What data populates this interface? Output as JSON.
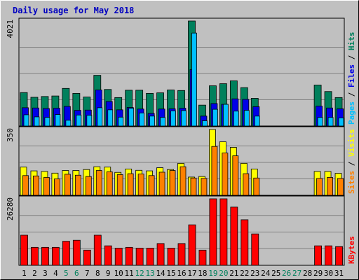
{
  "title": "Daily usage for May 2018",
  "colors": {
    "background": "#ffffff",
    "frame": "#c0c0c0",
    "plot_bg": "#c0c0c0",
    "grid": "#808080",
    "title": "#0000c0",
    "hits": "#00805c",
    "files": "#0000e8",
    "pages": "#00c0ff",
    "visits": "#ffff00",
    "sites": "#ff8000",
    "kbytes": "#ff0000",
    "weekday_label": "#000000",
    "weekend_label": "#00805c"
  },
  "legends": {
    "hits_panel": [
      {
        "text": "Pages",
        "color": "#00c0ff"
      },
      {
        "text": " / ",
        "color": "#000000"
      },
      {
        "text": "Files",
        "color": "#0000e8"
      },
      {
        "text": " / ",
        "color": "#000000"
      },
      {
        "text": "Hits",
        "color": "#00805c"
      }
    ],
    "visits_panel": [
      {
        "text": "Sites",
        "color": "#ff8000"
      },
      {
        "text": " / ",
        "color": "#000000"
      },
      {
        "text": "Visits",
        "color": "#ffff00"
      }
    ],
    "kbytes_panel": [
      {
        "text": "KBytes",
        "color": "#ff0000"
      }
    ]
  },
  "chart_data": [
    {
      "type": "bar",
      "panel": "hits",
      "ymax_label": "4021",
      "ylim": [
        0,
        4021
      ],
      "grid": true,
      "categories": [
        "1",
        "2",
        "3",
        "4",
        "5",
        "6",
        "7",
        "8",
        "9",
        "10",
        "11",
        "12",
        "13",
        "14",
        "15",
        "16",
        "17",
        "18",
        "19",
        "20",
        "21",
        "22",
        "23",
        "24",
        "25",
        "26",
        "27",
        "28",
        "29",
        "30",
        "31"
      ],
      "series": [
        {
          "name": "Hits",
          "values": [
            1280,
            1100,
            1130,
            1150,
            1440,
            1250,
            1110,
            1940,
            1400,
            1090,
            1370,
            1370,
            1250,
            1270,
            1380,
            1360,
            4021,
            800,
            1540,
            1620,
            1730,
            1470,
            1060,
            0,
            0,
            0,
            0,
            0,
            1570,
            1320,
            1090
          ]
        },
        {
          "name": "Files",
          "values": [
            700,
            690,
            670,
            680,
            750,
            600,
            610,
            1380,
            940,
            620,
            710,
            650,
            480,
            650,
            660,
            680,
            2160,
            380,
            860,
            830,
            1040,
            1020,
            740,
            0,
            0,
            0,
            0,
            0,
            760,
            690,
            660
          ]
        },
        {
          "name": "Pages",
          "values": [
            430,
            350,
            330,
            440,
            220,
            420,
            410,
            700,
            620,
            340,
            680,
            500,
            380,
            330,
            580,
            590,
            3560,
            200,
            640,
            830,
            570,
            600,
            380,
            0,
            0,
            0,
            0,
            0,
            330,
            330,
            310
          ]
        }
      ]
    },
    {
      "type": "bar",
      "panel": "visits",
      "ymax_label": "350",
      "ylim": [
        0,
        350
      ],
      "grid": true,
      "categories": [
        "1",
        "2",
        "3",
        "4",
        "5",
        "6",
        "7",
        "8",
        "9",
        "10",
        "11",
        "12",
        "13",
        "14",
        "15",
        "16",
        "17",
        "18",
        "19",
        "20",
        "21",
        "22",
        "23",
        "24",
        "25",
        "26",
        "27",
        "28",
        "29",
        "30",
        "31"
      ],
      "series": [
        {
          "name": "Visits",
          "values": [
            150,
            130,
            127,
            118,
            132,
            132,
            137,
            152,
            150,
            122,
            140,
            133,
            130,
            147,
            137,
            170,
            97,
            100,
            350,
            285,
            255,
            170,
            140,
            0,
            0,
            0,
            0,
            0,
            127,
            127,
            117
          ]
        },
        {
          "name": "Sites",
          "values": [
            105,
            103,
            95,
            87,
            112,
            107,
            100,
            132,
            125,
            110,
            115,
            113,
            105,
            123,
            132,
            152,
            92,
            90,
            260,
            225,
            210,
            115,
            92,
            0,
            0,
            0,
            0,
            0,
            90,
            95,
            90
          ]
        }
      ]
    },
    {
      "type": "bar",
      "panel": "kbytes",
      "ymax_label": "26280",
      "ylim": [
        0,
        26280
      ],
      "grid": true,
      "categories": [
        "1",
        "2",
        "3",
        "4",
        "5",
        "6",
        "7",
        "8",
        "9",
        "10",
        "11",
        "12",
        "13",
        "14",
        "15",
        "16",
        "17",
        "18",
        "19",
        "20",
        "21",
        "22",
        "23",
        "24",
        "25",
        "26",
        "27",
        "28",
        "29",
        "30",
        "31"
      ],
      "series": [
        {
          "name": "KBytes",
          "values": [
            11900,
            7100,
            7100,
            7100,
            9500,
            9900,
            6000,
            11900,
            7700,
            6800,
            7100,
            6800,
            6800,
            8600,
            6800,
            8600,
            16000,
            6000,
            26280,
            26280,
            23000,
            18000,
            12400,
            0,
            0,
            0,
            0,
            0,
            7700,
            7700,
            7400
          ]
        }
      ]
    }
  ],
  "x_labels": [
    {
      "text": "1",
      "weekend": false
    },
    {
      "text": "2",
      "weekend": false
    },
    {
      "text": "3",
      "weekend": false
    },
    {
      "text": "4",
      "weekend": false
    },
    {
      "text": "5",
      "weekend": true
    },
    {
      "text": "6",
      "weekend": true
    },
    {
      "text": "7",
      "weekend": false
    },
    {
      "text": "8",
      "weekend": false
    },
    {
      "text": "9",
      "weekend": false
    },
    {
      "text": "10",
      "weekend": false
    },
    {
      "text": "11",
      "weekend": false
    },
    {
      "text": "12",
      "weekend": true
    },
    {
      "text": "13",
      "weekend": true
    },
    {
      "text": "14",
      "weekend": false
    },
    {
      "text": "15",
      "weekend": false
    },
    {
      "text": "16",
      "weekend": false
    },
    {
      "text": "17",
      "weekend": false
    },
    {
      "text": "18",
      "weekend": false
    },
    {
      "text": "19",
      "weekend": true
    },
    {
      "text": "20",
      "weekend": true
    },
    {
      "text": "21",
      "weekend": false
    },
    {
      "text": "22",
      "weekend": false
    },
    {
      "text": "23",
      "weekend": false
    },
    {
      "text": "24",
      "weekend": false
    },
    {
      "text": "25",
      "weekend": false
    },
    {
      "text": "26",
      "weekend": true
    },
    {
      "text": "27",
      "weekend": true
    },
    {
      "text": "28",
      "weekend": false
    },
    {
      "text": "29",
      "weekend": false
    },
    {
      "text": "30",
      "weekend": false
    },
    {
      "text": "31",
      "weekend": false
    }
  ]
}
